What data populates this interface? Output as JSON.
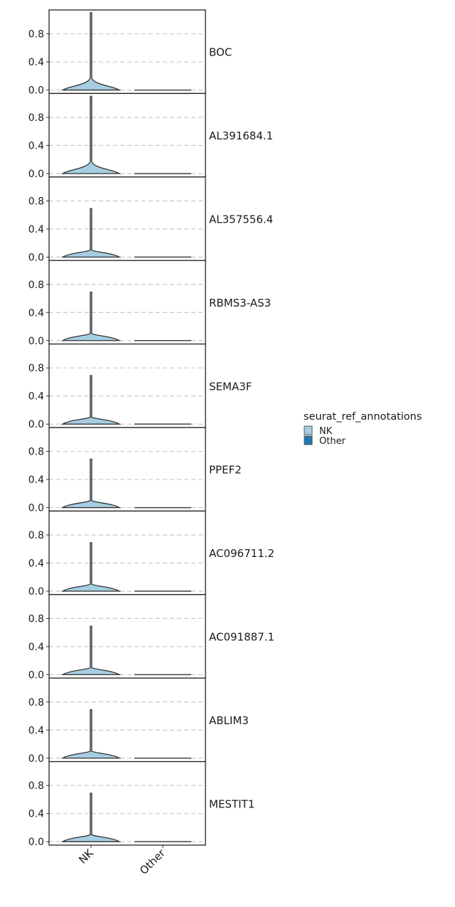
{
  "chart_data": {
    "type": "violin",
    "title": "",
    "xlabel": "",
    "ylabel": "",
    "categories": [
      "NK",
      "Other"
    ],
    "ylim": [
      -0.05,
      1.14
    ],
    "yticks": [
      "0.0",
      "0.4",
      "0.8"
    ],
    "ytick_values": [
      0,
      0.4,
      0.8
    ],
    "grid": "horizontal dashed",
    "legend": {
      "title": "seurat_ref_annotations",
      "placement": "right",
      "entries": [
        {
          "label": "NK",
          "color": "#a6cee3"
        },
        {
          "label": "Other",
          "color": "#1f78b4"
        }
      ]
    },
    "panels": [
      {
        "gene": "BOC",
        "nk_max": 1.1,
        "nk_neck": 0.17,
        "other_max": 0
      },
      {
        "gene": "AL391684.1",
        "nk_max": 1.1,
        "nk_neck": 0.17,
        "other_max": 0
      },
      {
        "gene": "AL357556.4",
        "nk_max": 0.69,
        "nk_neck": 0.1,
        "other_max": 0
      },
      {
        "gene": "RBMS3-AS3",
        "nk_max": 0.69,
        "nk_neck": 0.1,
        "other_max": 0
      },
      {
        "gene": "SEMA3F",
        "nk_max": 0.69,
        "nk_neck": 0.1,
        "other_max": 0
      },
      {
        "gene": "PPEF2",
        "nk_max": 0.69,
        "nk_neck": 0.1,
        "other_max": 0
      },
      {
        "gene": "AC096711.2",
        "nk_max": 0.69,
        "nk_neck": 0.1,
        "other_max": 0
      },
      {
        "gene": "AC091887.1",
        "nk_max": 0.69,
        "nk_neck": 0.1,
        "other_max": 0
      },
      {
        "gene": "ABLIM3",
        "nk_max": 0.69,
        "nk_neck": 0.1,
        "other_max": 0
      },
      {
        "gene": "MESTIT1",
        "nk_max": 0.69,
        "nk_neck": 0.1,
        "other_max": 0
      }
    ]
  }
}
